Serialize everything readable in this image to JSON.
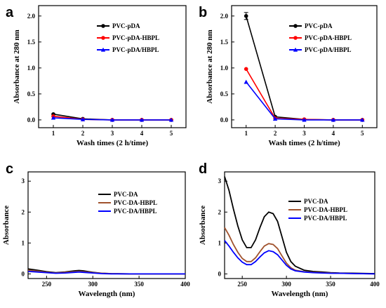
{
  "chart_data": [
    {
      "panel": "a",
      "type": "line",
      "xlabel": "Wash times (2 h/time)",
      "ylabel": "Absorbance at 280 nm",
      "xlim": [
        0.5,
        5.5
      ],
      "ylim": [
        -0.15,
        2.2
      ],
      "xticks": [
        "1",
        "2",
        "3",
        "4",
        "5"
      ],
      "yticks": [
        "0.0",
        "0.5",
        "1.0",
        "1.5",
        "2.0"
      ],
      "x": [
        1,
        2,
        3,
        4,
        5
      ],
      "legend_position": "top-right",
      "markers": true,
      "series": [
        {
          "name": "PVC-pDA",
          "color": "#000000",
          "values": [
            0.11,
            0.02,
            0.0,
            0.0,
            0.0
          ]
        },
        {
          "name": "PVC-pDA-HBPL",
          "color": "#ff0000",
          "values": [
            0.07,
            0.01,
            0.0,
            0.0,
            0.0
          ]
        },
        {
          "name": "PVC-pDA/HBPL",
          "color": "#0000ff",
          "values": [
            0.04,
            0.01,
            0.0,
            0.0,
            0.0
          ]
        }
      ]
    },
    {
      "panel": "b",
      "type": "line",
      "xlabel": "Wash times (2 h/time)",
      "ylabel": "Absorbance at 280 nm",
      "xlim": [
        0.5,
        5.5
      ],
      "ylim": [
        -0.15,
        2.2
      ],
      "xticks": [
        "1",
        "2",
        "3",
        "4",
        "5"
      ],
      "yticks": [
        "0.0",
        "0.5",
        "1.0",
        "1.5",
        "2.0"
      ],
      "x": [
        1,
        2,
        3,
        4,
        5
      ],
      "legend_position": "top-right",
      "markers": true,
      "series": [
        {
          "name": "PVC-pDA",
          "color": "#000000",
          "values": [
            2.0,
            0.06,
            0.01,
            0.0,
            0.0
          ]
        },
        {
          "name": "PVC-pDA-HBPL",
          "color": "#ff0000",
          "values": [
            0.98,
            0.03,
            0.01,
            0.0,
            0.0
          ]
        },
        {
          "name": "PVC-pDA/HBPL",
          "color": "#0000ff",
          "values": [
            0.73,
            0.02,
            0.0,
            0.0,
            0.0
          ]
        }
      ]
    },
    {
      "panel": "c",
      "type": "line",
      "xlabel": "Wavelength (nm)",
      "ylabel": "Absorbance",
      "xlim": [
        230,
        400
      ],
      "ylim": [
        -0.15,
        3.3
      ],
      "xticks": [
        "250",
        "300",
        "350",
        "400"
      ],
      "yticks": [
        "0",
        "1",
        "2",
        "3"
      ],
      "x": [
        230,
        240,
        250,
        260,
        270,
        280,
        285,
        290,
        300,
        310,
        320,
        340,
        360,
        380,
        400
      ],
      "legend_position": "right",
      "markers": false,
      "series": [
        {
          "name": "PVC-DA",
          "color": "#000000",
          "values": [
            0.16,
            0.12,
            0.07,
            0.04,
            0.06,
            0.1,
            0.11,
            0.1,
            0.05,
            0.02,
            0.01,
            0.0,
            0.0,
            0.0,
            0.0
          ]
        },
        {
          "name": "PVC-DA-HBPL",
          "color": "#a0522d",
          "values": [
            0.12,
            0.09,
            0.05,
            0.03,
            0.05,
            0.07,
            0.08,
            0.07,
            0.04,
            0.02,
            0.01,
            0.0,
            0.0,
            0.0,
            0.0
          ]
        },
        {
          "name": "PVC-DA/HBPL",
          "color": "#0000ff",
          "values": [
            0.08,
            0.06,
            0.04,
            0.02,
            0.03,
            0.05,
            0.06,
            0.05,
            0.03,
            0.01,
            0.0,
            0.0,
            0.0,
            0.0,
            0.0
          ]
        }
      ]
    },
    {
      "panel": "d",
      "type": "line",
      "xlabel": "Wavelength (nm)",
      "ylabel": "Absorbance",
      "xlim": [
        230,
        400
      ],
      "ylim": [
        -0.15,
        3.3
      ],
      "xticks": [
        "250",
        "300",
        "350",
        "400"
      ],
      "yticks": [
        "0",
        "1",
        "2",
        "3"
      ],
      "x": [
        230,
        235,
        240,
        245,
        250,
        255,
        260,
        265,
        270,
        275,
        280,
        285,
        290,
        295,
        300,
        305,
        310,
        320,
        330,
        340,
        350,
        360,
        380,
        400
      ],
      "legend_position": "right",
      "markers": false,
      "series": [
        {
          "name": "PVC-DA",
          "color": "#000000",
          "values": [
            3.15,
            2.7,
            2.1,
            1.55,
            1.1,
            0.85,
            0.85,
            1.1,
            1.5,
            1.85,
            2.0,
            1.95,
            1.7,
            1.2,
            0.7,
            0.4,
            0.25,
            0.12,
            0.08,
            0.06,
            0.04,
            0.03,
            0.02,
            0.01
          ]
        },
        {
          "name": "PVC-DA-HBPL",
          "color": "#a0522d",
          "values": [
            1.5,
            1.25,
            0.95,
            0.7,
            0.5,
            0.4,
            0.4,
            0.52,
            0.72,
            0.9,
            0.98,
            0.95,
            0.82,
            0.58,
            0.35,
            0.2,
            0.12,
            0.07,
            0.05,
            0.04,
            0.03,
            0.02,
            0.01,
            0.0
          ]
        },
        {
          "name": "PVC-DA/HBPL",
          "color": "#0000ff",
          "values": [
            1.08,
            0.9,
            0.7,
            0.52,
            0.38,
            0.3,
            0.3,
            0.4,
            0.55,
            0.68,
            0.75,
            0.72,
            0.62,
            0.45,
            0.28,
            0.16,
            0.1,
            0.06,
            0.04,
            0.03,
            0.02,
            0.02,
            0.01,
            0.0
          ]
        }
      ]
    }
  ]
}
